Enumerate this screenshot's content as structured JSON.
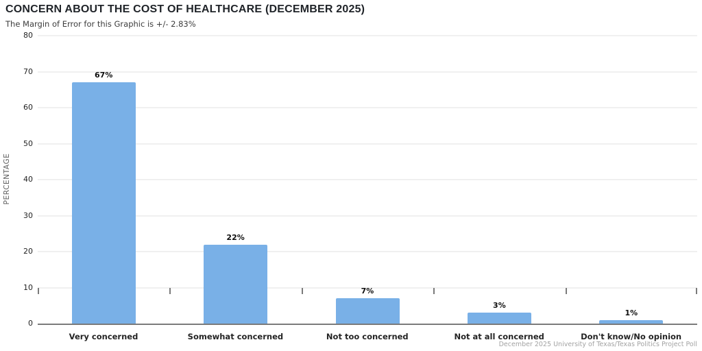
{
  "chart_data": {
    "type": "bar",
    "title": "CONCERN ABOUT THE COST OF HEALTHCARE (DECEMBER 2025)",
    "subtitle": "The Margin of Error for this Graphic is +/- 2.83%",
    "categories": [
      "Very concerned",
      "Somewhat concerned",
      "Not too concerned",
      "Not at all concerned",
      "Don't know/No opinion"
    ],
    "values": [
      67,
      22,
      7,
      3,
      1
    ],
    "value_labels": [
      "67%",
      "22%",
      "7%",
      "3%",
      "1%"
    ],
    "xlabel": "",
    "ylabel": "PERCENTAGE",
    "ylim": [
      0,
      80
    ],
    "yticks": [
      0,
      10,
      20,
      30,
      40,
      50,
      60,
      70,
      80
    ],
    "grid": true,
    "legend_position": "none",
    "bar_color": "#79B0E7",
    "axis_color": "#7a7a7a",
    "source_note": "December 2025 University of Texas/Texas Politics Project Poll"
  }
}
